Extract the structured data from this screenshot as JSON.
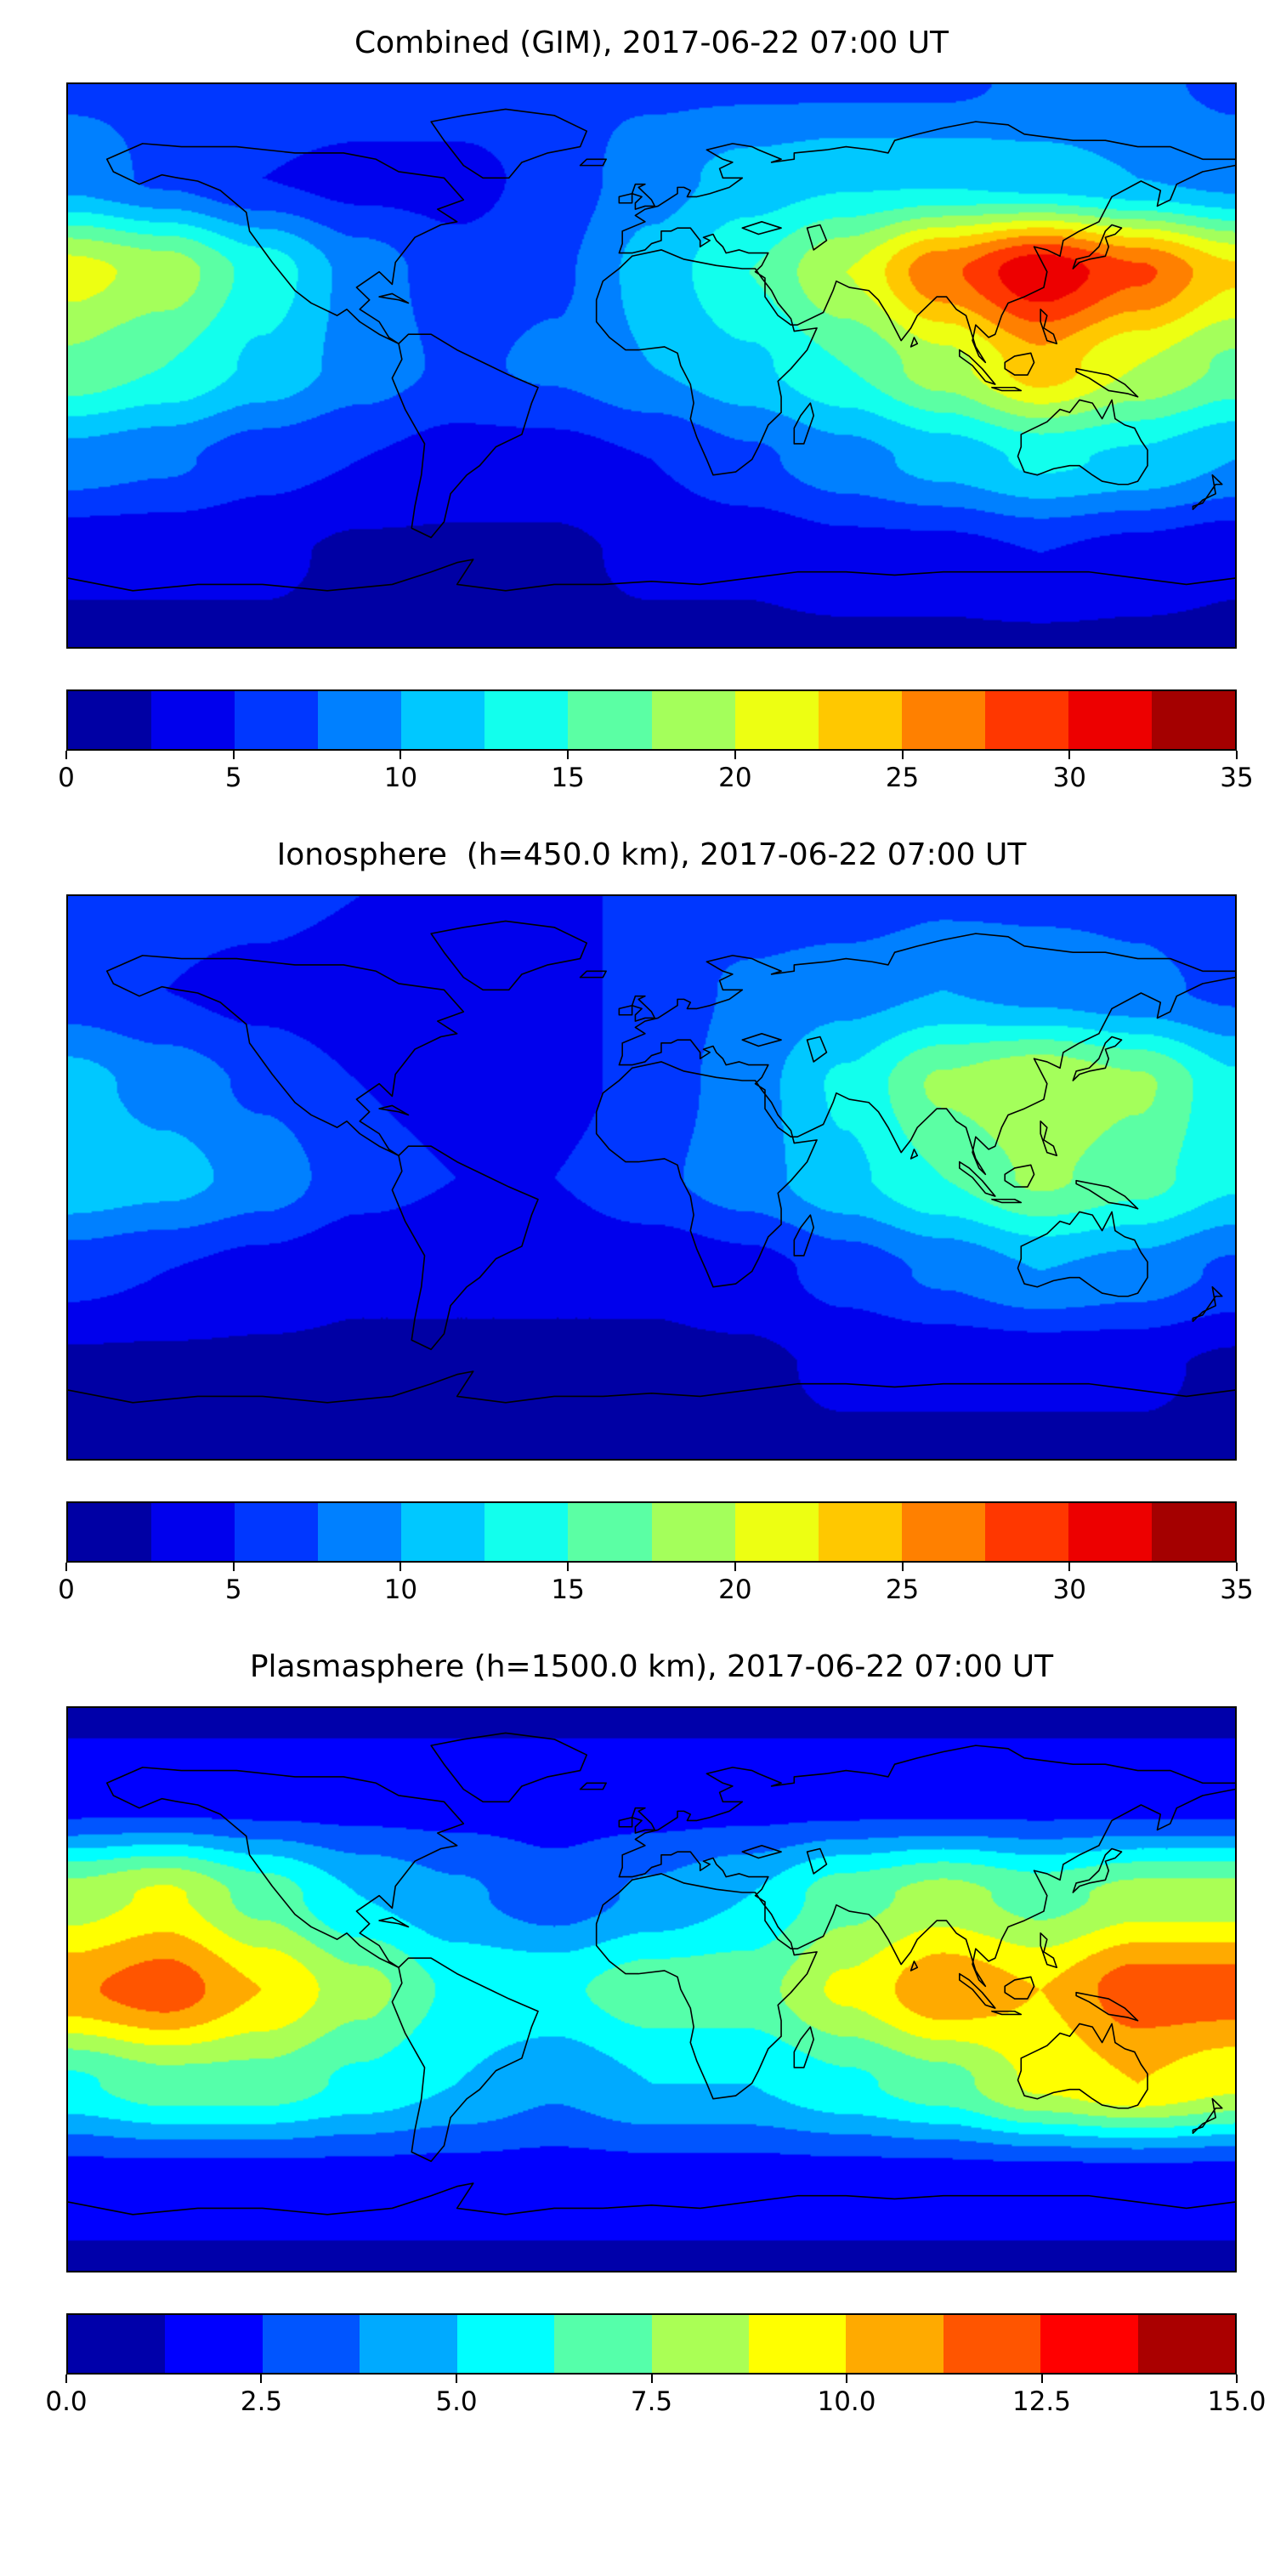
{
  "chart_data": [
    {
      "type": "heatmap",
      "title": "Combined (GIM), 2017-06-22 07:00 UT",
      "colormap": "jet",
      "projection": "equirectangular",
      "lon_range": [
        -180,
        180
      ],
      "lat_range": [
        -90,
        90
      ],
      "levels": {
        "min": 0,
        "max": 35,
        "step": 2.5
      },
      "colorbar_ticks": [
        "0",
        "5",
        "10",
        "15",
        "20",
        "25",
        "30",
        "35"
      ],
      "legend_position": "bottom-colorbar",
      "grid": {
        "lats": [
          90,
          60,
          30,
          0,
          -30,
          -60,
          -90
        ],
        "lons": [
          -180,
          -150,
          -120,
          -90,
          -60,
          -30,
          0,
          30,
          60,
          90,
          120,
          150,
          180
        ],
        "values": [
          [
            7,
            7,
            7,
            7,
            7,
            7,
            7,
            7,
            7,
            7,
            8,
            8,
            7
          ],
          [
            9,
            7,
            5,
            4,
            4,
            6,
            9,
            11,
            12,
            12,
            11,
            10,
            9
          ],
          [
            21,
            19,
            14,
            9,
            6,
            7,
            11,
            15,
            20,
            27,
            32,
            28,
            23
          ],
          [
            17,
            15,
            12,
            9,
            7,
            8,
            10,
            12,
            15,
            19,
            24,
            20,
            17
          ],
          [
            9,
            8,
            6,
            5,
            4,
            4,
            5,
            7,
            9,
            11,
            13,
            12,
            10
          ],
          [
            3,
            3,
            3,
            2,
            2,
            2,
            3,
            3,
            4,
            4,
            5,
            4,
            3
          ],
          [
            2,
            2,
            2,
            2,
            2,
            2,
            2,
            2,
            2,
            2,
            2,
            2,
            2
          ]
        ]
      }
    },
    {
      "type": "heatmap",
      "title": "Ionosphere  (h=450.0 km), 2017-06-22 07:00 UT",
      "colormap": "jet",
      "projection": "equirectangular",
      "lon_range": [
        -180,
        180
      ],
      "lat_range": [
        -90,
        90
      ],
      "levels": {
        "min": 0,
        "max": 35,
        "step": 2.5
      },
      "colorbar_ticks": [
        "0",
        "5",
        "10",
        "15",
        "20",
        "25",
        "30",
        "35"
      ],
      "legend_position": "bottom-colorbar",
      "grid": {
        "lats": [
          90,
          60,
          30,
          0,
          -30,
          -60,
          -90
        ],
        "lons": [
          -180,
          -150,
          -120,
          -90,
          -60,
          -30,
          0,
          30,
          60,
          90,
          120,
          150,
          180
        ],
        "values": [
          [
            6,
            6,
            6,
            5,
            5,
            5,
            5,
            6,
            6,
            7,
            7,
            7,
            6
          ],
          [
            6,
            5,
            4,
            3,
            3,
            4,
            6,
            8,
            9,
            10,
            9,
            8,
            7
          ],
          [
            11,
            9,
            7,
            5,
            4,
            4,
            6,
            9,
            13,
            18,
            20,
            18,
            13
          ],
          [
            12,
            11,
            9,
            6,
            5,
            5,
            7,
            9,
            12,
            15,
            18,
            16,
            13
          ],
          [
            6,
            5,
            4,
            3,
            3,
            3,
            3,
            4,
            6,
            8,
            10,
            9,
            7
          ],
          [
            2,
            2,
            2,
            2,
            2,
            2,
            2,
            2,
            3,
            3,
            3,
            3,
            2
          ],
          [
            2,
            2,
            2,
            2,
            2,
            2,
            2,
            2,
            2,
            2,
            2,
            2,
            2
          ]
        ]
      }
    },
    {
      "type": "heatmap",
      "title": "Plasmasphere (h=1500.0 km), 2017-06-22 07:00 UT",
      "colormap": "jet",
      "projection": "equirectangular",
      "lon_range": [
        -180,
        180
      ],
      "lat_range": [
        -90,
        90
      ],
      "levels": {
        "min": 0,
        "max": 15,
        "step": 1.25
      },
      "colorbar_ticks": [
        "0.0",
        "2.5",
        "5.0",
        "7.5",
        "10.0",
        "12.5",
        "15.0"
      ],
      "legend_position": "bottom-colorbar",
      "grid": {
        "lats": [
          90,
          60,
          30,
          0,
          -30,
          -60,
          -90
        ],
        "lons": [
          -180,
          -150,
          -120,
          -90,
          -60,
          -30,
          0,
          30,
          60,
          90,
          120,
          150,
          180
        ],
        "values": [
          [
            1,
            1,
            1,
            1,
            1,
            1,
            1,
            1,
            1,
            1,
            1,
            1,
            1
          ],
          [
            2,
            2,
            2,
            2,
            2,
            2,
            2,
            2,
            2,
            2,
            2,
            2,
            2
          ],
          [
            8,
            9,
            7,
            5,
            4,
            3,
            4,
            5,
            7,
            8,
            7,
            8,
            8
          ],
          [
            11,
            12,
            10,
            8,
            6,
            6,
            7,
            7,
            9,
            11,
            10,
            12,
            12
          ],
          [
            6,
            7,
            7,
            6,
            5,
            4,
            5,
            5,
            6,
            7,
            9,
            10,
            9
          ],
          [
            2,
            2,
            2,
            2,
            2,
            2,
            2,
            2,
            2,
            2,
            2,
            2,
            2
          ],
          [
            1,
            1,
            1,
            1,
            1,
            1,
            1,
            1,
            1,
            1,
            1,
            1,
            1
          ]
        ]
      }
    }
  ]
}
